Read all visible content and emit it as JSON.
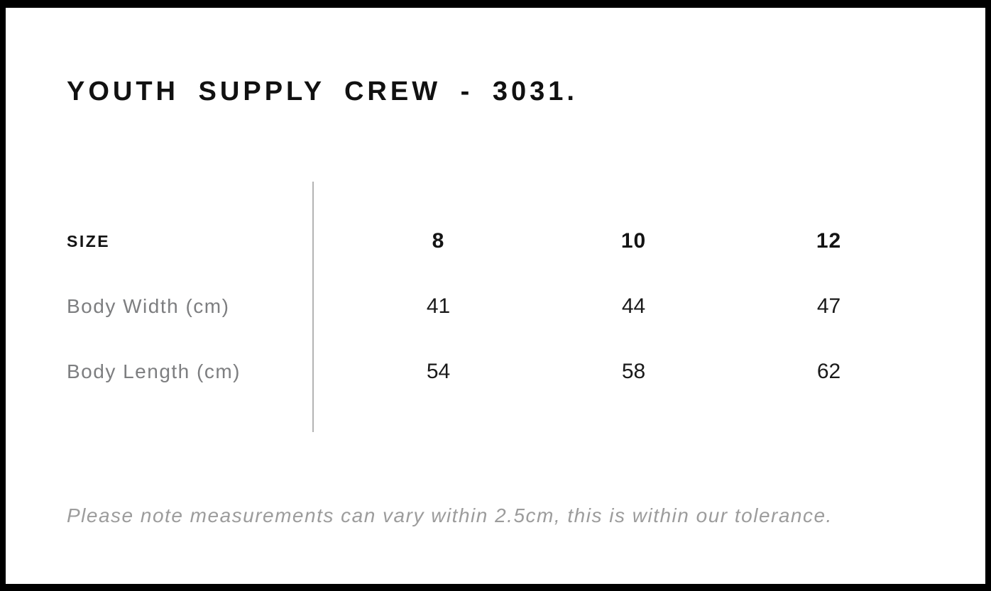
{
  "page": {
    "title": "YOUTH SUPPLY CREW - 3031."
  },
  "size_chart": {
    "header_label": "SIZE",
    "columns": [
      "8",
      "10",
      "12"
    ],
    "rows": [
      {
        "label": "Body Width (cm)",
        "values": [
          "41",
          "44",
          "47"
        ]
      },
      {
        "label": "Body Length (cm)",
        "values": [
          "54",
          "58",
          "62"
        ]
      }
    ]
  },
  "footer": {
    "note": "Please note measurements can vary within 2.5cm, this is within our tolerance."
  },
  "colors": {
    "frame_border": "#000000",
    "background": "#ffffff",
    "heading_text": "#111111",
    "table_value_text": "#1a1a1a",
    "row_label_gray": "#7d7e80",
    "note_gray": "#9c9c9c",
    "divider_gray": "#b3b3b3"
  }
}
